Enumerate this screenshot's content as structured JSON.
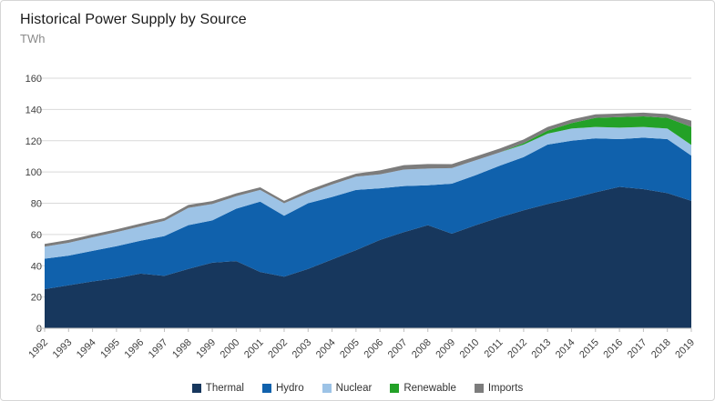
{
  "header": {
    "title": "Historical Power Supply by Source",
    "units": "TWh"
  },
  "chart_data": {
    "type": "area",
    "stacked": true,
    "title": "Historical Power Supply by Source",
    "ylabel": "TWh",
    "xlabel": "",
    "grid": true,
    "legend_position": "bottom",
    "ylim": [
      0,
      160
    ],
    "ytick_step": 20,
    "x": [
      1992,
      1993,
      1994,
      1995,
      1996,
      1997,
      1998,
      1999,
      2000,
      2001,
      2002,
      2003,
      2004,
      2005,
      2006,
      2007,
      2008,
      2009,
      2010,
      2011,
      2012,
      2013,
      2014,
      2015,
      2016,
      2017,
      2018,
      2019
    ],
    "series": [
      {
        "name": "Thermal",
        "color": "#17375d",
        "values": [
          25,
          27.5,
          30,
          32,
          35,
          33.5,
          38,
          42,
          43,
          36,
          33,
          38,
          44,
          50,
          56.5,
          61.5,
          66,
          60.5,
          66,
          71,
          75.5,
          79.5,
          83,
          87,
          90.5,
          89,
          86.5,
          81.5
        ]
      },
      {
        "name": "Hydro",
        "color": "#1061ac",
        "values": [
          19.5,
          19,
          19.5,
          20.5,
          21,
          25.5,
          28,
          27,
          33.5,
          45,
          39,
          42,
          40,
          38.5,
          33,
          29.5,
          25.5,
          32,
          32,
          33,
          34,
          38,
          37,
          34.5,
          30.5,
          33,
          34.5,
          29
        ]
      },
      {
        "name": "Nuclear",
        "color": "#9dc3e6",
        "values": [
          7.7,
          8.2,
          8.7,
          9,
          9.2,
          9.7,
          11,
          10.5,
          8,
          7.5,
          8,
          6.5,
          8,
          8.5,
          9,
          10.5,
          10.7,
          10,
          9.5,
          8.5,
          8,
          7,
          7.8,
          7.3,
          7.4,
          6.8,
          6.8,
          6.8
        ]
      },
      {
        "name": "Renewable",
        "color": "#23a127",
        "values": [
          0,
          0,
          0,
          0,
          0,
          0,
          0,
          0,
          0,
          0,
          0,
          0,
          0,
          0,
          0,
          0,
          0,
          0,
          0,
          0,
          1,
          2,
          3.5,
          5.8,
          6.7,
          6.8,
          6.8,
          11.6
        ]
      },
      {
        "name": "Imports",
        "color": "#7c7c7c",
        "values": [
          1.8,
          1.8,
          1.8,
          1.8,
          1.8,
          1.8,
          1.9,
          1.9,
          1.8,
          1.7,
          1.5,
          1.9,
          1.9,
          1.9,
          2.5,
          2.9,
          2.9,
          2.5,
          2.5,
          2.5,
          2.3,
          2.3,
          2.3,
          2.3,
          2.3,
          2.4,
          2.4,
          3.9
        ]
      }
    ]
  },
  "axes": {
    "y_tick_labels": [
      "0",
      "20",
      "40",
      "60",
      "80",
      "100",
      "120",
      "140",
      "160"
    ],
    "x_tick_labels": [
      "1992",
      "1993",
      "1994",
      "1995",
      "1996",
      "1997",
      "1998",
      "1999",
      "2000",
      "2001",
      "2002",
      "2003",
      "2004",
      "2005",
      "2006",
      "2007",
      "2008",
      "2009",
      "2010",
      "2011",
      "2012",
      "2013",
      "2014",
      "2015",
      "2016",
      "2017",
      "2018",
      "2019"
    ]
  },
  "legend": {
    "items": [
      "Thermal",
      "Hydro",
      "Nuclear",
      "Renewable",
      "Imports"
    ]
  },
  "style": {
    "grid_color": "#d9d9d9",
    "axis_color": "#bfbfbf",
    "label_color": "#404040"
  }
}
